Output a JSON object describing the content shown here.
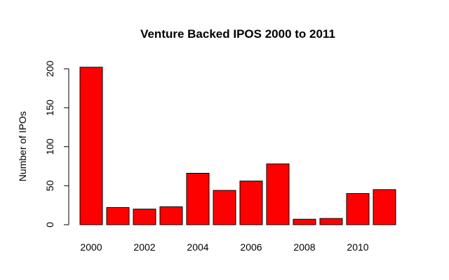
{
  "chart_data": {
    "type": "bar",
    "title": "Venture Backed IPOS 2000 to 2011",
    "xlabel": "",
    "ylabel": "Number of IPOs",
    "categories": [
      "2000",
      "2001",
      "2002",
      "2003",
      "2004",
      "2005",
      "2006",
      "2007",
      "2008",
      "2009",
      "2010",
      "2011"
    ],
    "values": [
      202,
      22,
      20,
      23,
      66,
      44,
      56,
      78,
      7,
      8,
      40,
      45
    ],
    "x_tick_labels": [
      "2000",
      "2002",
      "2004",
      "2006",
      "2008",
      "2010"
    ],
    "y_ticks": [
      0,
      50,
      100,
      150,
      200
    ],
    "ylim": [
      0,
      202
    ],
    "grid": false,
    "colors": {
      "bar_fill": "#ff0000",
      "bar_stroke": "#000000"
    }
  }
}
